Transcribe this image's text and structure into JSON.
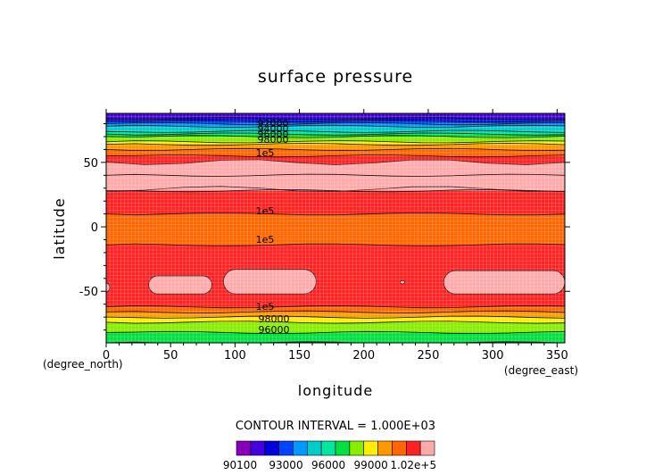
{
  "chart_data": {
    "type": "heatmap",
    "title": "surface pressure",
    "xlabel": "longitude",
    "ylabel": "latitude",
    "x_unit": "(degree_east)",
    "y_unit": "(degree_north)",
    "xlim": [
      0,
      356
    ],
    "ylim": [
      -90,
      88
    ],
    "x_ticks": [
      0,
      50,
      100,
      150,
      200,
      250,
      300,
      350
    ],
    "y_ticks": [
      50,
      0,
      -50
    ],
    "grid": true,
    "contour_interval_text": "CONTOUR INTERVAL = 1.000E+03",
    "contour_labels": [
      "92000",
      "94000",
      "96000",
      "98000",
      "1e5",
      "1e5",
      "1e5",
      "1e5",
      "98000",
      "96000"
    ],
    "colorbar": {
      "levels": [
        90100,
        91000,
        92000,
        93000,
        94000,
        95000,
        96000,
        97000,
        98000,
        99000,
        100000,
        101000,
        102000
      ],
      "tick_labels": [
        "90100",
        "93000",
        "96000",
        "99000",
        "1.02e+5"
      ],
      "colors": [
        "#8800bb",
        "#4400dd",
        "#0000dd",
        "#0044ff",
        "#0099ff",
        "#00cccc",
        "#00e8a0",
        "#00e040",
        "#88ee00",
        "#ffee00",
        "#ff9900",
        "#ff6600",
        "#ff2222",
        "#ffaaaa"
      ]
    },
    "latitude_profile": {
      "lat": [
        88,
        86,
        84,
        82,
        80,
        78,
        76,
        74,
        72,
        70,
        68,
        66,
        64,
        62,
        60,
        58,
        55,
        50,
        40,
        28,
        20,
        10,
        0,
        -10,
        -14,
        -20,
        -30,
        -40,
        -50,
        -58,
        -62,
        -66,
        -70,
        -74,
        -78,
        -82,
        -86,
        -90
      ],
      "value": [
        90100,
        90800,
        91600,
        92400,
        93200,
        94000,
        94800,
        95600,
        96300,
        97000,
        97700,
        98400,
        99100,
        99700,
        100200,
        100600,
        101000,
        101600,
        102100,
        101500,
        101200,
        100800,
        100500,
        100600,
        101000,
        101400,
        101600,
        101700,
        101800,
        101100,
        100700,
        99800,
        98800,
        97900,
        97200,
        96600,
        96100,
        95800
      ]
    },
    "high_pressure_regions": [
      {
        "lat_range": [
          28,
          53
        ],
        "lon_range": [
          0,
          356
        ],
        "min_value": 102000
      },
      {
        "lat_range": [
          -38,
          -52
        ],
        "lon_range": [
          33,
          82
        ],
        "min_value": 102000
      },
      {
        "lat_range": [
          -33,
          -52
        ],
        "lon_range": [
          91,
          163
        ],
        "min_value": 102000
      },
      {
        "lat_range": [
          -34,
          -52
        ],
        "lon_range": [
          262,
          356
        ],
        "min_value": 102000
      }
    ]
  }
}
